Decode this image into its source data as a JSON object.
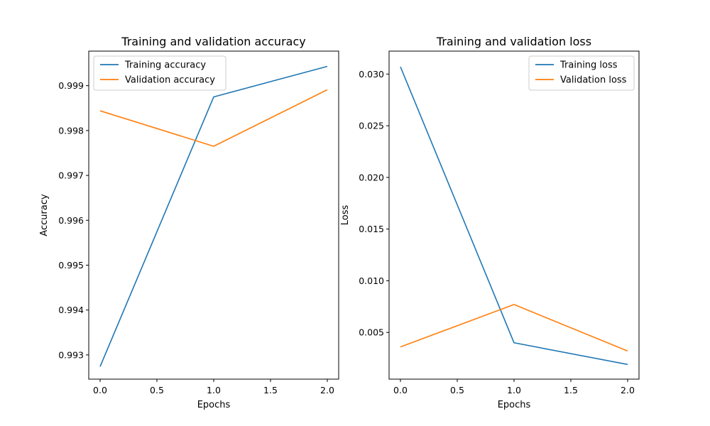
{
  "chart_data": [
    {
      "type": "line",
      "title": "Training and validation accuracy",
      "xlabel": "Epochs",
      "ylabel": "Accuracy",
      "x": [
        0,
        1,
        2
      ],
      "xlim": [
        -0.1,
        2.1
      ],
      "ylim": [
        0.99246,
        0.99977
      ],
      "xticks": [
        0.0,
        0.5,
        1.0,
        1.5,
        2.0
      ],
      "xtick_labels": [
        "0.0",
        "0.5",
        "1.0",
        "1.5",
        "2.0"
      ],
      "yticks": [
        0.993,
        0.994,
        0.995,
        0.996,
        0.997,
        0.998,
        0.999
      ],
      "ytick_labels": [
        "0.993",
        "0.994",
        "0.995",
        "0.996",
        "0.997",
        "0.998",
        "0.999"
      ],
      "legend_position": "upper-left",
      "grid": false,
      "series": [
        {
          "name": "Training accuracy",
          "color": "#1f77b4",
          "values": [
            0.99274,
            0.99875,
            0.99943
          ]
        },
        {
          "name": "Validation accuracy",
          "color": "#ff7f0e",
          "values": [
            0.99844,
            0.99765,
            0.99891
          ]
        }
      ]
    },
    {
      "type": "line",
      "title": "Training and validation loss",
      "xlabel": "Epochs",
      "ylabel": "Loss",
      "x": [
        0,
        1,
        2
      ],
      "xlim": [
        -0.1,
        2.1
      ],
      "ylim": [
        0.00048,
        0.03222
      ],
      "xticks": [
        0.0,
        0.5,
        1.0,
        1.5,
        2.0
      ],
      "xtick_labels": [
        "0.0",
        "0.5",
        "1.0",
        "1.5",
        "2.0"
      ],
      "yticks": [
        0.005,
        0.01,
        0.015,
        0.02,
        0.025,
        0.03
      ],
      "ytick_labels": [
        "0.005",
        "0.010",
        "0.015",
        "0.020",
        "0.025",
        "0.030"
      ],
      "legend_position": "upper-right",
      "grid": false,
      "series": [
        {
          "name": "Training loss",
          "color": "#1f77b4",
          "values": [
            0.0307,
            0.004,
            0.0019
          ]
        },
        {
          "name": "Validation loss",
          "color": "#ff7f0e",
          "values": [
            0.0036,
            0.0077,
            0.0032
          ]
        }
      ]
    }
  ]
}
